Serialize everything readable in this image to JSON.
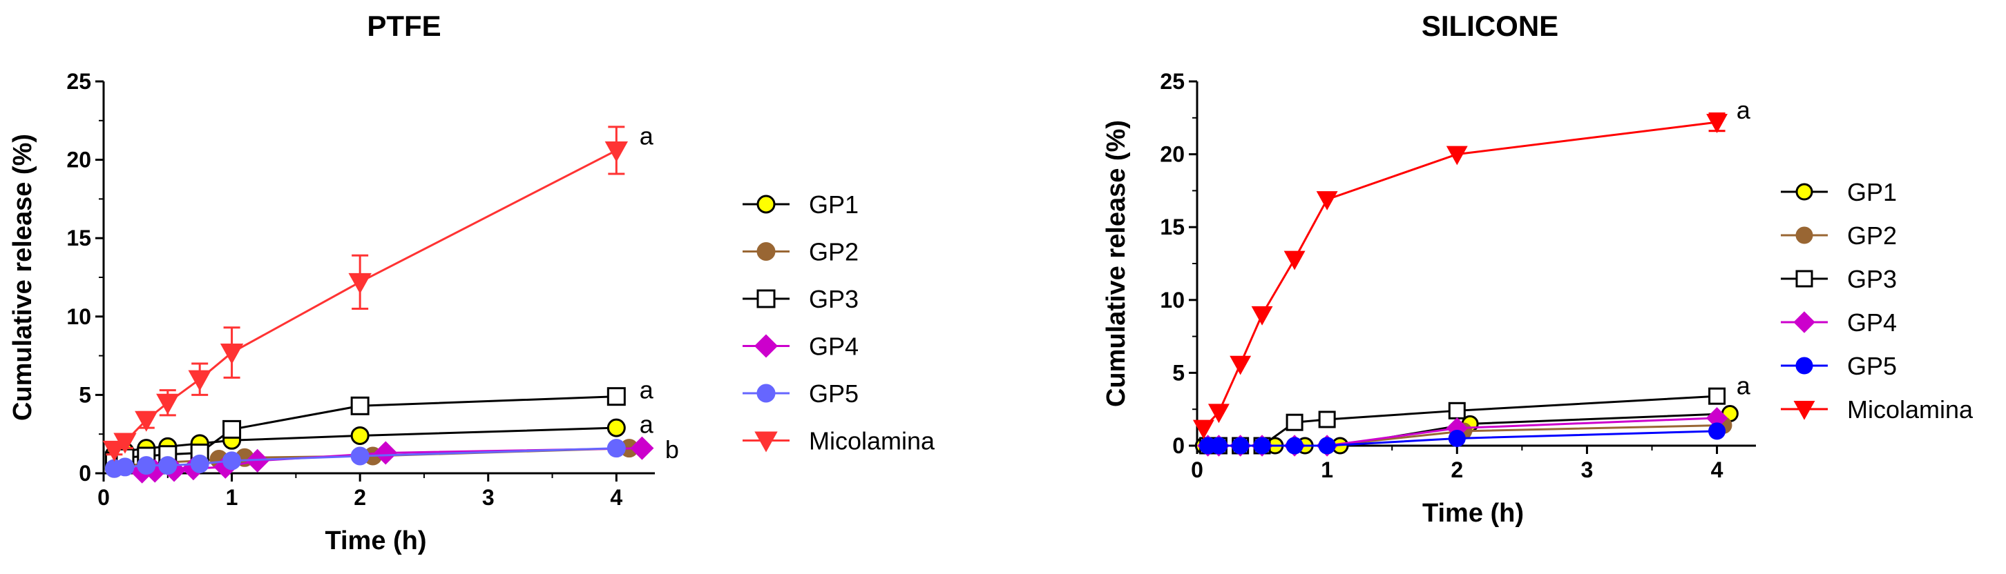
{
  "chart_data": [
    {
      "type": "line",
      "title": "PTFE",
      "xlabel": "Time (h)",
      "ylabel": "Cumulative release (%)",
      "xlim": [
        0,
        4.3
      ],
      "ylim": [
        0,
        25
      ],
      "xticks": [
        "0",
        "1",
        "2",
        "3",
        "4"
      ],
      "yticks": [
        "0",
        "5",
        "10",
        "15",
        "20",
        "25"
      ],
      "legend_position": "right",
      "series": [
        {
          "name": "GP1",
          "color": "#000000",
          "marker": "circle",
          "marker_fill": "#ffff00",
          "x": [
            0.083,
            0.167,
            0.333,
            0.5,
            0.75,
            1,
            2,
            4
          ],
          "y": [
            1.2,
            1.4,
            1.6,
            1.7,
            1.9,
            2.1,
            2.4,
            2.9
          ],
          "err": [
            0,
            0,
            0,
            0,
            0,
            0,
            0,
            0
          ]
        },
        {
          "name": "GP2",
          "color": "#996633",
          "marker": "circle",
          "marker_fill": "#996633",
          "x": [
            0.083,
            0.167,
            0.333,
            0.5,
            0.75,
            0.9,
            1.1,
            2.1,
            4.1
          ],
          "y": [
            0.3,
            0.5,
            0.6,
            0.7,
            0.8,
            0.9,
            1.0,
            1.1,
            1.6
          ],
          "err": [
            0,
            0,
            0,
            0,
            0,
            0,
            0,
            0,
            0
          ]
        },
        {
          "name": "GP3",
          "color": "#000000",
          "marker": "square",
          "marker_fill": "#ffffff",
          "x": [
            0.083,
            0.167,
            0.333,
            0.5,
            0.75,
            1,
            2,
            4
          ],
          "y": [
            0.8,
            1.0,
            1.1,
            1.2,
            1.3,
            2.8,
            4.3,
            4.9
          ],
          "err": [
            0,
            0,
            0,
            0,
            0,
            0,
            0,
            0
          ]
        },
        {
          "name": "GP4",
          "color": "#cc00cc",
          "marker": "diamond",
          "marker_fill": "#cc00cc",
          "x": [
            0.3,
            0.4,
            0.55,
            0.7,
            0.95,
            1.2,
            2.2,
            4.2
          ],
          "y": [
            0.1,
            0.15,
            0.2,
            0.3,
            0.4,
            0.8,
            1.3,
            1.6
          ],
          "err": [
            0,
            0,
            0,
            0,
            0,
            0,
            0,
            0
          ]
        },
        {
          "name": "GP5",
          "color": "#6666ff",
          "marker": "circle",
          "marker_fill": "#6666ff",
          "x": [
            0.083,
            0.167,
            0.333,
            0.5,
            0.75,
            1,
            2,
            4
          ],
          "y": [
            0.3,
            0.4,
            0.5,
            0.5,
            0.6,
            0.8,
            1.1,
            1.6
          ],
          "err": [
            0,
            0,
            0,
            0,
            0,
            0,
            0,
            0
          ]
        },
        {
          "name": "Micolamina",
          "color": "#ff3333",
          "marker": "triangle-down",
          "marker_fill": "#ff3333",
          "x": [
            0.083,
            0.167,
            0.333,
            0.5,
            0.75,
            1,
            2,
            4
          ],
          "y": [
            1.5,
            2.0,
            3.4,
            4.5,
            6.0,
            7.7,
            12.2,
            20.6
          ],
          "err": [
            0.3,
            0.4,
            0.5,
            0.8,
            1.0,
            1.6,
            1.7,
            1.5
          ]
        }
      ],
      "annotations": [
        {
          "text": "a",
          "x": 4.18,
          "y": 21.5
        },
        {
          "text": "a",
          "x": 4.18,
          "y": 5.3
        },
        {
          "text": "a",
          "x": 4.18,
          "y": 3.1
        },
        {
          "text": "b",
          "x": 4.38,
          "y": 1.5
        }
      ]
    },
    {
      "type": "line",
      "title": "SILICONE",
      "xlabel": "Time (h)",
      "ylabel": "Cumulative release (%)",
      "xlim": [
        0,
        4.3
      ],
      "ylim": [
        0,
        25
      ],
      "xticks": [
        "0",
        "1",
        "2",
        "3",
        "4"
      ],
      "yticks": [
        "0",
        "5",
        "10",
        "15",
        "20",
        "25"
      ],
      "legend_position": "right",
      "series": [
        {
          "name": "GP1",
          "color": "#000000",
          "marker": "circle",
          "marker_fill": "#ffff00",
          "x": [
            0.05,
            0.1,
            0.167,
            0.333,
            0.5,
            0.6,
            0.83,
            1.1,
            2.1,
            4.1
          ],
          "y": [
            0,
            0,
            0,
            0,
            0,
            0,
            0,
            0,
            1.5,
            2.2
          ],
          "err": [
            0,
            0,
            0,
            0,
            0,
            0,
            0,
            0,
            0,
            0
          ]
        },
        {
          "name": "GP2",
          "color": "#996633",
          "marker": "circle",
          "marker_fill": "#996633",
          "x": [
            0.083,
            0.167,
            0.333,
            0.5,
            0.75,
            1,
            2.05,
            4.05
          ],
          "y": [
            0,
            0,
            0,
            0,
            0,
            0,
            1.0,
            1.4
          ],
          "err": [
            0,
            0,
            0,
            0,
            0,
            0,
            0,
            0
          ]
        },
        {
          "name": "GP3",
          "color": "#000000",
          "marker": "square",
          "marker_fill": "#ffffff",
          "x": [
            0.083,
            0.167,
            0.333,
            0.5,
            0.75,
            1,
            2,
            4
          ],
          "y": [
            0,
            0,
            0,
            0,
            1.6,
            1.8,
            2.4,
            3.4
          ],
          "err": [
            0,
            0,
            0,
            0,
            0,
            0,
            0,
            0
          ]
        },
        {
          "name": "GP4",
          "color": "#cc00cc",
          "marker": "diamond",
          "marker_fill": "#cc00cc",
          "x": [
            0.083,
            0.167,
            0.333,
            0.5,
            0.75,
            1,
            2,
            4
          ],
          "y": [
            0,
            0,
            0,
            0,
            0,
            0,
            1.2,
            1.9
          ],
          "err": [
            0,
            0,
            0,
            0,
            0,
            0,
            0,
            0
          ]
        },
        {
          "name": "GP5",
          "color": "#0000ff",
          "marker": "circle",
          "marker_fill": "#0000ff",
          "x": [
            0.083,
            0.167,
            0.333,
            0.5,
            0.75,
            1,
            2,
            4
          ],
          "y": [
            0,
            0,
            0,
            0,
            0,
            0,
            0.5,
            1.0
          ],
          "err": [
            0,
            0,
            0,
            0,
            0,
            0,
            0,
            0
          ]
        },
        {
          "name": "Micolamina",
          "color": "#ff0000",
          "marker": "triangle-down",
          "marker_fill": "#ff0000",
          "x": [
            0.05,
            0.167,
            0.333,
            0.5,
            0.75,
            1,
            2,
            4
          ],
          "y": [
            1.2,
            2.3,
            5.6,
            9.0,
            12.8,
            16.9,
            20.0,
            22.2
          ],
          "err": [
            0,
            0,
            0,
            0,
            0,
            0,
            0,
            0.6
          ]
        }
      ],
      "annotations": [
        {
          "text": "a",
          "x": 4.15,
          "y": 23.0
        },
        {
          "text": "a",
          "x": 4.15,
          "y": 4.1
        }
      ]
    }
  ]
}
